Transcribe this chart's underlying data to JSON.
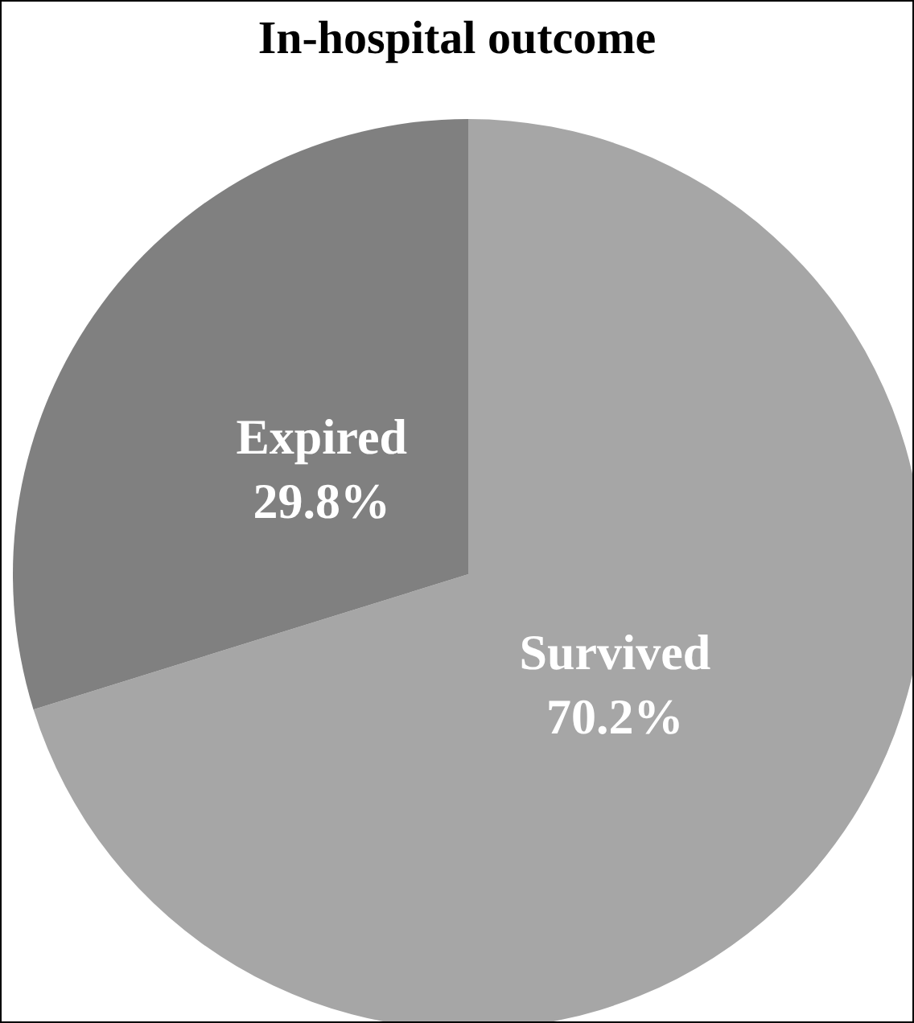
{
  "chart_data": {
    "type": "pie",
    "title": "In-hospital outcome",
    "categories": [
      "Survived",
      "Expired"
    ],
    "values": [
      70.2,
      29.8
    ],
    "value_labels": [
      "70.2%",
      "29.8%"
    ],
    "colors": [
      "#a6a6a6",
      "#808080"
    ],
    "legend": false
  }
}
